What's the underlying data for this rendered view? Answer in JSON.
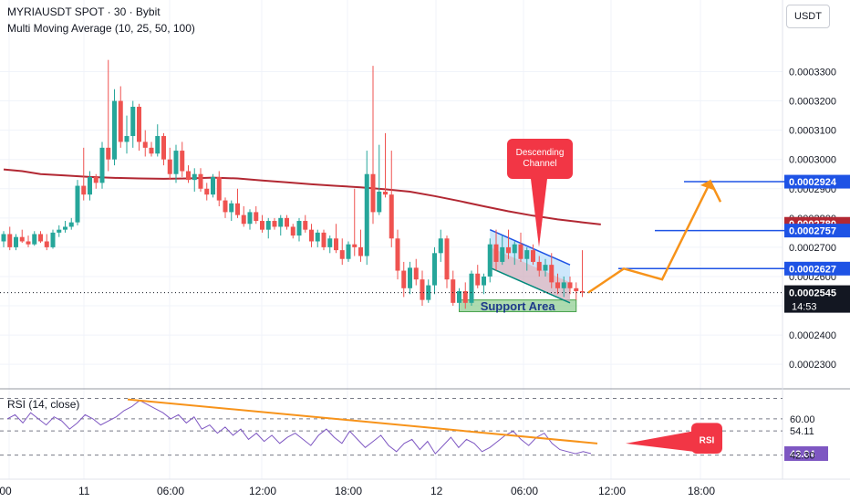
{
  "header": {
    "symbol": "MYRIAUSDT SPOT · 30 · Bybit",
    "indicator": "Multi Moving Average (10, 25, 50, 100)"
  },
  "currency_button": "USDT",
  "colors": {
    "up": "#26a69a",
    "down": "#ef5350",
    "ma": "#b22833",
    "blue": "#1e53e5",
    "orange": "#f7931a",
    "rsi": "#7e57c2",
    "support": "#81c784",
    "red_label": "#f23645"
  },
  "chart_data": [
    {
      "type": "candlestick",
      "title": "MYRIAUSDT SPOT · 30 · Bybit",
      "y_ticks": [
        "0.0002300",
        "0.0002400",
        "0.0002500",
        "0.0002600",
        "0.0002700",
        "0.0002800",
        "0.0002900",
        "0.0003000",
        "0.0003100",
        "0.0003200",
        "0.0003300"
      ],
      "x_ticks": [
        ":00",
        "11",
        "06:00",
        "12:00",
        "18:00",
        "12",
        "06:00",
        "12:00",
        "18:00"
      ],
      "ylim": [
        0.000226,
        0.000342
      ],
      "ma_series": [
        {
          "name": "MA 100",
          "points": [
            [
              0,
              0.0002966
            ],
            [
              3,
              0.000296
            ],
            [
              6,
              0.000295
            ],
            [
              10,
              0.0002945
            ],
            [
              14,
              0.000294
            ],
            [
              18,
              0.0002937
            ],
            [
              22,
              0.0002935
            ],
            [
              26,
              0.0002934
            ],
            [
              30,
              0.0002935
            ],
            [
              34,
              0.0002938
            ],
            [
              38,
              0.0002935
            ],
            [
              42,
              0.0002928
            ],
            [
              46,
              0.0002922
            ],
            [
              50,
              0.0002915
            ],
            [
              54,
              0.000291
            ],
            [
              58,
              0.0002905
            ],
            [
              62,
              0.0002898
            ],
            [
              66,
              0.000289
            ],
            [
              70,
              0.0002875
            ],
            [
              74,
              0.0002858
            ],
            [
              78,
              0.000284
            ],
            [
              82,
              0.0002823
            ],
            [
              86,
              0.0002808
            ],
            [
              90,
              0.0002795
            ],
            [
              94,
              0.0002785
            ],
            [
              97,
              0.0002778
            ]
          ]
        }
      ],
      "candles": [
        [
          0.000272,
          0.0002755,
          0.00027,
          0.0002745
        ],
        [
          0.0002745,
          0.000277,
          0.000269,
          0.00027
        ],
        [
          0.00027,
          0.0002745,
          0.000269,
          0.0002735
        ],
        [
          0.0002735,
          0.000276,
          0.0002715,
          0.000272
        ],
        [
          0.000272,
          0.000274,
          0.00027,
          0.000271
        ],
        [
          0.000271,
          0.0002755,
          0.0002705,
          0.0002745
        ],
        [
          0.0002745,
          0.0002755,
          0.0002715,
          0.000272
        ],
        [
          0.000272,
          0.0002745,
          0.000269,
          0.00027
        ],
        [
          0.00027,
          0.000276,
          0.0002695,
          0.000275
        ],
        [
          0.000275,
          0.0002775,
          0.0002735,
          0.000276
        ],
        [
          0.000276,
          0.000279,
          0.000275,
          0.000277
        ],
        [
          0.000277,
          0.00028,
          0.000276,
          0.0002785
        ],
        [
          0.0002785,
          0.000293,
          0.0002775,
          0.000291
        ],
        [
          0.000291,
          0.000304,
          0.000286,
          0.000288
        ],
        [
          0.000288,
          0.000296,
          0.000286,
          0.000294
        ],
        [
          0.000294,
          0.000295,
          0.00029,
          0.000292
        ],
        [
          0.000292,
          0.000306,
          0.00029,
          0.000304
        ],
        [
          0.000304,
          0.000334,
          0.000296,
          0.0003
        ],
        [
          0.0003,
          0.000324,
          0.000298,
          0.00032
        ],
        [
          0.00032,
          0.000325,
          0.000304,
          0.000306
        ],
        [
          0.000306,
          0.000315,
          0.000302,
          0.000308
        ],
        [
          0.000308,
          0.00032,
          0.000304,
          0.000318
        ],
        [
          0.000318,
          0.000319,
          0.000303,
          0.000306
        ],
        [
          0.000306,
          0.00031,
          0.000301,
          0.000304
        ],
        [
          0.000304,
          0.000306,
          0.000301,
          0.000302
        ],
        [
          0.000302,
          0.000312,
          0.000301,
          0.000308
        ],
        [
          0.000308,
          0.000309,
          0.000298,
          0.0003
        ],
        [
          0.0003,
          0.000304,
          0.000293,
          0.000295
        ],
        [
          0.000295,
          0.000305,
          0.000292,
          0.000303
        ],
        [
          0.000303,
          0.000306,
          0.000294,
          0.000296
        ],
        [
          0.000296,
          0.000298,
          0.000292,
          0.000293
        ],
        [
          0.000293,
          0.000297,
          0.000289,
          0.000295
        ],
        [
          0.000295,
          0.000297,
          0.000289,
          0.00029
        ],
        [
          0.00029,
          0.000292,
          0.000286,
          0.000288
        ],
        [
          0.000288,
          0.000295,
          0.000287,
          0.000294
        ],
        [
          0.000294,
          0.000296,
          0.000284,
          0.000286
        ],
        [
          0.000286,
          0.000287,
          0.00028,
          0.000282
        ],
        [
          0.000282,
          0.000286,
          0.000279,
          0.000285
        ],
        [
          0.000285,
          0.00029,
          0.00028,
          0.000281
        ],
        [
          0.000281,
          0.000284,
          0.000277,
          0.000278
        ],
        [
          0.000278,
          0.000283,
          0.000276,
          0.000282
        ],
        [
          0.000282,
          0.000284,
          0.000278,
          0.000279
        ],
        [
          0.000279,
          0.000281,
          0.000275,
          0.000276
        ],
        [
          0.000276,
          0.00028,
          0.000273,
          0.000279
        ],
        [
          0.000279,
          0.00028,
          0.000276,
          0.000277
        ],
        [
          0.000277,
          0.000281,
          0.000274,
          0.00028
        ],
        [
          0.00028,
          0.000281,
          0.000276,
          0.000277
        ],
        [
          0.000277,
          0.000278,
          0.000273,
          0.000274
        ],
        [
          0.000274,
          0.00028,
          0.000272,
          0.000279
        ],
        [
          0.000279,
          0.000281,
          0.000275,
          0.000276
        ],
        [
          0.000276,
          0.000278,
          0.00027,
          0.000272
        ],
        [
          0.000272,
          0.000276,
          0.00027,
          0.000275
        ],
        [
          0.000275,
          0.000276,
          0.000269,
          0.00027
        ],
        [
          0.00027,
          0.000274,
          0.000268,
          0.000273
        ],
        [
          0.000273,
          0.000278,
          0.000268,
          0.000269
        ],
        [
          0.000269,
          0.000273,
          0.000264,
          0.000266
        ],
        [
          0.000266,
          0.000272,
          0.000265,
          0.000271
        ],
        [
          0.000271,
          0.00029,
          0.000267,
          0.00027
        ],
        [
          0.00027,
          0.000276,
          0.000265,
          0.000267
        ],
        [
          0.000267,
          0.000303,
          0.000264,
          0.000295
        ],
        [
          0.000295,
          0.000332,
          0.000278,
          0.000282
        ],
        [
          0.000282,
          0.000305,
          0.000281,
          0.000289
        ],
        [
          0.000289,
          0.000309,
          0.000287,
          0.000288
        ],
        [
          0.000288,
          0.000303,
          0.00027,
          0.000273
        ],
        [
          0.000273,
          0.000276,
          0.000259,
          0.000262
        ],
        [
          0.000262,
          0.000265,
          0.000253,
          0.000256
        ],
        [
          0.000256,
          0.000265,
          0.000254,
          0.000263
        ],
        [
          0.000263,
          0.000266,
          0.000257,
          0.000259
        ],
        [
          0.000259,
          0.000262,
          0.00025,
          0.000252
        ],
        [
          0.000252,
          0.000259,
          0.000251,
          0.000257
        ],
        [
          0.000257,
          0.00027,
          0.000254,
          0.000268
        ],
        [
          0.000268,
          0.000276,
          0.000265,
          0.000273
        ],
        [
          0.000273,
          0.000274,
          0.000256,
          0.000259
        ],
        [
          0.000259,
          0.000262,
          0.00025,
          0.000251
        ],
        [
          0.000251,
          0.000256,
          0.000249,
          0.000255
        ],
        [
          0.000255,
          0.000258,
          0.000249,
          0.000251
        ],
        [
          0.000251,
          0.000262,
          0.00025,
          0.000261
        ],
        [
          0.000261,
          0.000264,
          0.000256,
          0.000257
        ],
        [
          0.000257,
          0.000261,
          0.000254,
          0.00026
        ],
        [
          0.00026,
          0.000273,
          0.000258,
          0.000271
        ],
        [
          0.000271,
          0.000276,
          0.000262,
          0.000265
        ],
        [
          0.000265,
          0.000274,
          0.000264,
          0.00027
        ],
        [
          0.00027,
          0.000276,
          0.000266,
          0.000268
        ],
        [
          0.000268,
          0.000272,
          0.000264,
          0.000271
        ],
        [
          0.000271,
          0.000275,
          0.000265,
          0.000266
        ],
        [
          0.000266,
          0.00027,
          0.000262,
          0.000269
        ],
        [
          0.000269,
          0.000271,
          0.000264,
          0.000265
        ],
        [
          0.000265,
          0.000267,
          0.00026,
          0.000262
        ],
        [
          0.000262,
          0.000266,
          0.00026,
          0.000264
        ],
        [
          0.000264,
          0.000268,
          0.000256,
          0.000258
        ],
        [
          0.000258,
          0.000261,
          0.000254,
          0.000256
        ],
        [
          0.000256,
          0.00026,
          0.000253,
          0.000258
        ],
        [
          0.000258,
          0.00026,
          0.000254,
          0.000256
        ],
        [
          0.000256,
          0.000258,
          0.000252,
          0.000255
        ],
        [
          0.000255,
          0.000269,
          0.000253,
          0.0002545
        ]
      ],
      "horizontal_levels": [
        {
          "price": 0.0002924,
          "label": "0.0002924",
          "style": "blue"
        },
        {
          "price": 0.000278,
          "label": "0.0002780",
          "style": "red"
        },
        {
          "price": 0.0002757,
          "label": "0.0002757",
          "style": "blue"
        },
        {
          "price": 0.0002627,
          "label": "0.0002627",
          "style": "blue"
        },
        {
          "price": 0.0002545,
          "label": "0.0002545",
          "style": "dark",
          "sub": "14:53"
        }
      ],
      "annotations": {
        "descending_channel": "Descending\nChannel",
        "support_area": "Support Area"
      }
    },
    {
      "type": "line",
      "title": "RSI (14, close)",
      "y_ticks": [
        "60.00",
        "54.11",
        "43.04",
        "42.30"
      ],
      "rsi_label": "RSI",
      "values": [
        60,
        62,
        58,
        63,
        60,
        57,
        61,
        59,
        55,
        58,
        62,
        60,
        57,
        59,
        61,
        64,
        66,
        69,
        67,
        65,
        63,
        60,
        62,
        58,
        61,
        55,
        57,
        53,
        56,
        52,
        55,
        50,
        53,
        49,
        52,
        48,
        51,
        53,
        50,
        47,
        52,
        55,
        51,
        48,
        54,
        50,
        46,
        49,
        52,
        47,
        44,
        48,
        50,
        45,
        49,
        43,
        47,
        51,
        46,
        50,
        48,
        44,
        46,
        49,
        52,
        54,
        50,
        47,
        51,
        53,
        48,
        45,
        44,
        43,
        44,
        43.04
      ]
    }
  ]
}
